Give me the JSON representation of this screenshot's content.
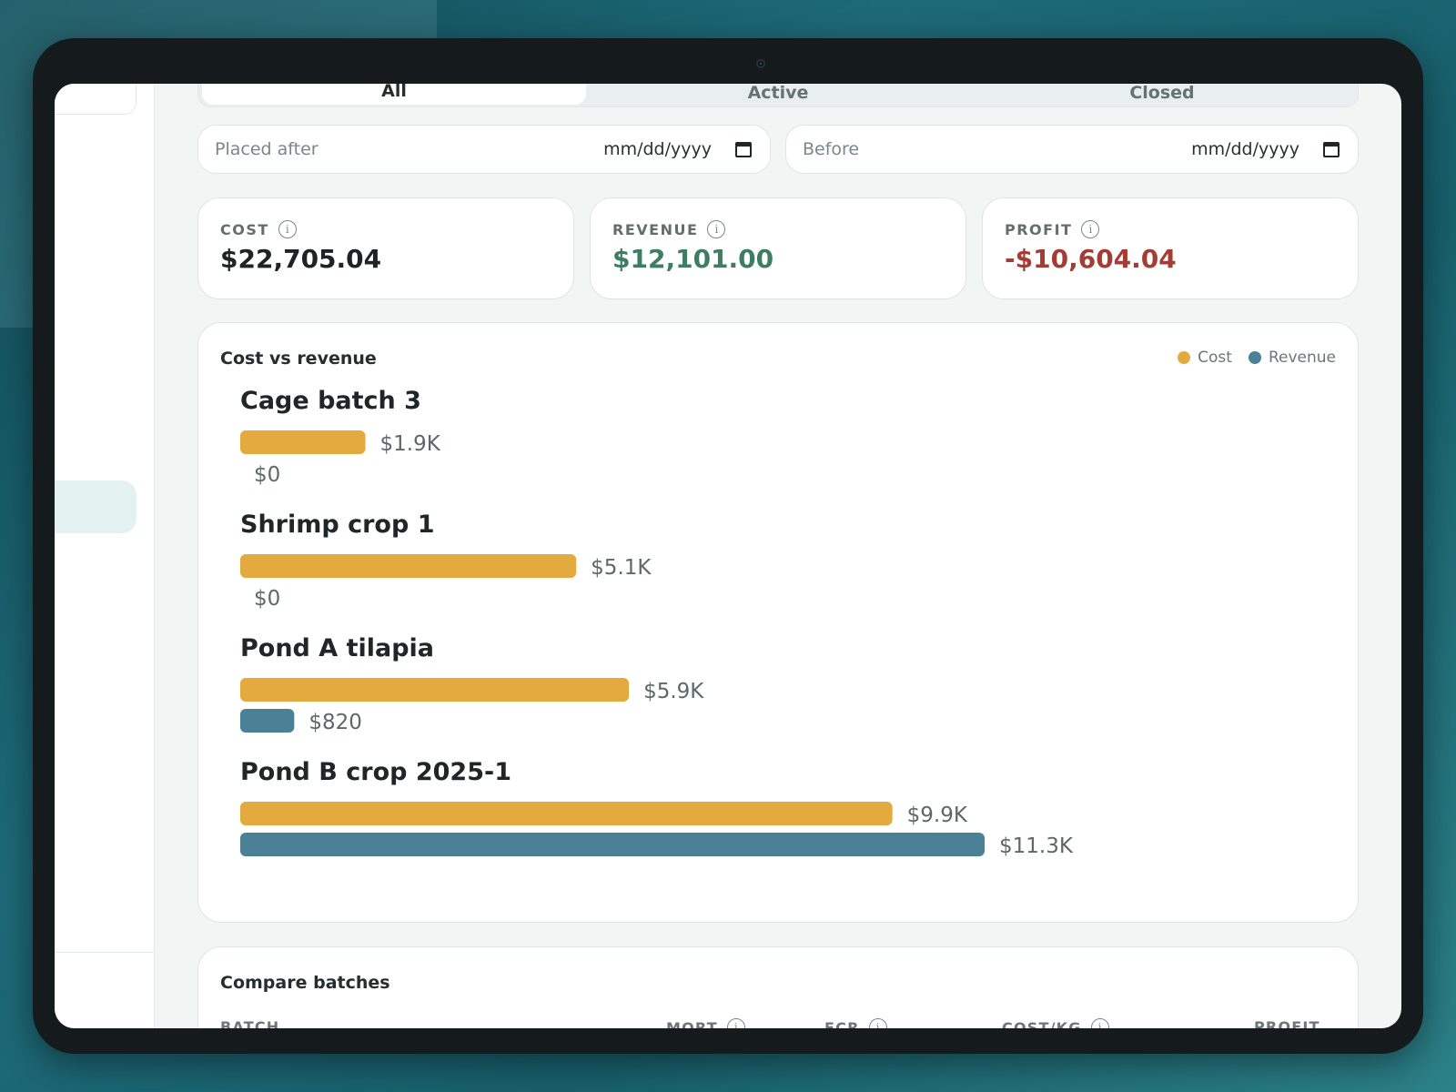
{
  "tabs": [
    {
      "label": "All",
      "active": true
    },
    {
      "label": "Active",
      "active": false
    },
    {
      "label": "Closed",
      "active": false
    }
  ],
  "filters": {
    "placed_after": {
      "label": "Placed after",
      "value": "mm/dd/yyyy"
    },
    "before": {
      "label": "Before",
      "value": "mm/dd/yyyy"
    }
  },
  "stats": {
    "cost": {
      "label": "COST",
      "value": "$22,705.04",
      "color": "#1d2423"
    },
    "revenue": {
      "label": "REVENUE",
      "value": "$12,101.00",
      "color": "#3d7d62"
    },
    "profit": {
      "label": "PROFIT",
      "value": "-$10,604.04",
      "color": "#a53b34"
    }
  },
  "chart_card": {
    "title": "Cost vs revenue",
    "legend": [
      {
        "name": "Cost",
        "color": "#e3aa3f"
      },
      {
        "name": "Revenue",
        "color": "#4a8196"
      }
    ]
  },
  "chart_data": {
    "type": "bar",
    "orientation": "horizontal",
    "categories": [
      "Cage batch 3",
      "Shrimp crop 1",
      "Pond A tilapia",
      "Pond B crop 2025-1"
    ],
    "series": [
      {
        "name": "Cost",
        "values": [
          1900,
          5100,
          5900,
          9900
        ],
        "labels": [
          "$1.9K",
          "$5.1K",
          "$5.9K",
          "$9.9K"
        ]
      },
      {
        "name": "Revenue",
        "values": [
          0,
          0,
          820,
          11300
        ],
        "labels": [
          "$0",
          "$0",
          "$820",
          "$11.3K"
        ]
      }
    ],
    "title": "Cost vs revenue",
    "legend_position": "top-right",
    "grid": false
  },
  "compare": {
    "title": "Compare batches",
    "headers": [
      {
        "label": "BATCH",
        "info": false
      },
      {
        "label": "MORT",
        "info": true
      },
      {
        "label": "FCR",
        "info": true
      },
      {
        "label": "COST/KG",
        "info": true
      },
      {
        "label": "PROFIT",
        "info": false
      }
    ]
  },
  "icons": {
    "info": "info-icon",
    "calendar": "calendar-icon"
  }
}
